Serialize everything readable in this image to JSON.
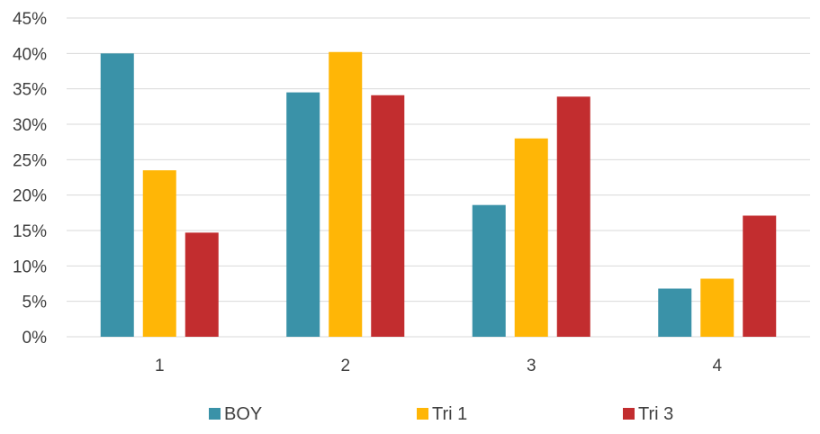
{
  "chart_data": {
    "type": "bar",
    "title": "",
    "xlabel": "",
    "ylabel": "",
    "categories": [
      "1",
      "2",
      "3",
      "4"
    ],
    "series": [
      {
        "name": "BOY",
        "color": "#3a92a8",
        "values": [
          40.0,
          34.5,
          18.6,
          6.8
        ]
      },
      {
        "name": "Tri 1",
        "color": "#ffb606",
        "values": [
          23.5,
          40.2,
          28.0,
          8.2
        ]
      },
      {
        "name": "Tri 3",
        "color": "#c22d2f",
        "values": [
          14.7,
          34.1,
          33.9,
          17.1
        ]
      }
    ],
    "ylim": [
      0,
      45
    ],
    "yticks": [
      "0%",
      "5%",
      "10%",
      "15%",
      "20%",
      "25%",
      "30%",
      "35%",
      "40%",
      "45%"
    ],
    "grid": true,
    "legend_position": "bottom",
    "gridline_color": "#d9d9d9"
  }
}
